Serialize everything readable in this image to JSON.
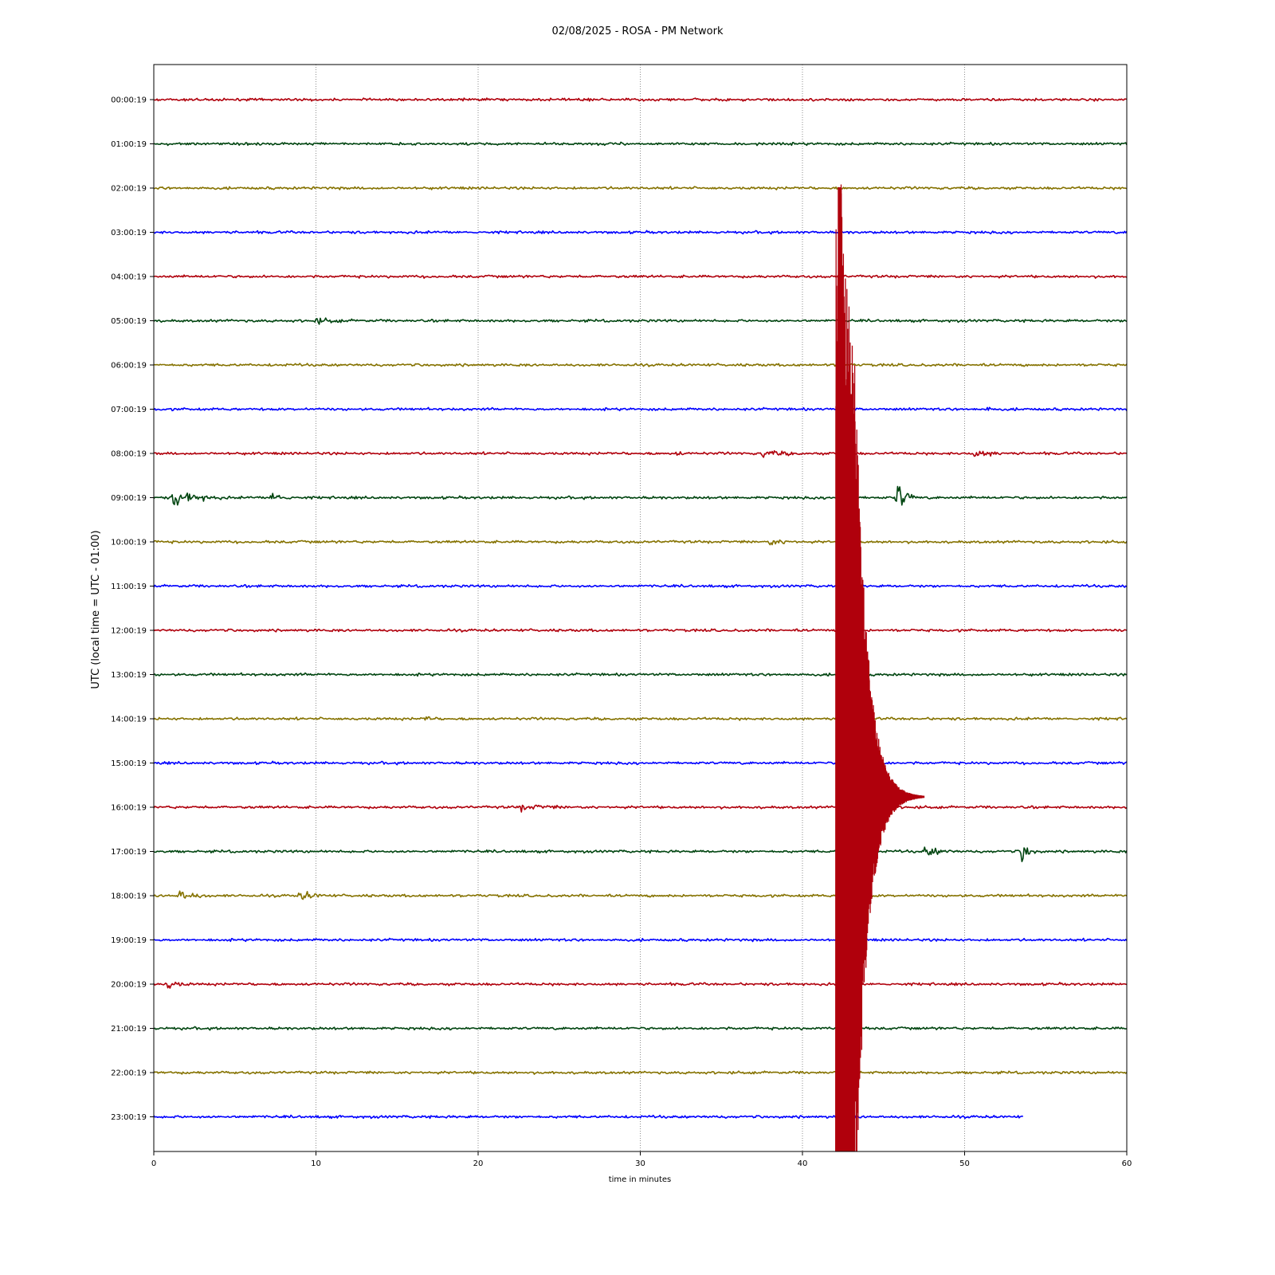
{
  "chart_data": {
    "type": "line",
    "title": "02/08/2025 - ROSA - PM Network",
    "xlabel": "time in minutes",
    "ylabel": "UTC (local time = UTC - 01:00)",
    "xlim": [
      0,
      60
    ],
    "xticks": [
      0,
      10,
      20,
      30,
      40,
      50,
      60
    ],
    "grid": "vertical dotted at x ticks",
    "color_cycle": [
      "#b0000c",
      "#004510",
      "#857200",
      "#0000ff"
    ],
    "series": [
      {
        "label": "00:00:19",
        "bursts": []
      },
      {
        "label": "01:00:19",
        "bursts": []
      },
      {
        "label": "02:00:19",
        "bursts": []
      },
      {
        "label": "03:00:19",
        "bursts": []
      },
      {
        "label": "04:00:19",
        "bursts": []
      },
      {
        "label": "05:00:19",
        "bursts": [
          {
            "t": 10,
            "amp": 0.08,
            "dur": 3
          }
        ]
      },
      {
        "label": "06:00:19",
        "bursts": []
      },
      {
        "label": "07:00:19",
        "bursts": [
          {
            "t": 51.4,
            "amp": 0.1,
            "dur": 0.6
          }
        ]
      },
      {
        "label": "08:00:19",
        "bursts": [
          {
            "t": 32.3,
            "amp": 0.15,
            "dur": 0.4
          },
          {
            "t": 37.5,
            "amp": 0.12,
            "dur": 3
          },
          {
            "t": 50.5,
            "amp": 0.12,
            "dur": 3
          }
        ]
      },
      {
        "label": "09:00:19",
        "bursts": [
          {
            "t": 1.2,
            "amp": 0.3,
            "dur": 3
          },
          {
            "t": 7.3,
            "amp": 0.22,
            "dur": 1.5
          },
          {
            "t": 45.8,
            "amp": 0.6,
            "dur": 1.2
          }
        ]
      },
      {
        "label": "10:00:19",
        "bursts": [
          {
            "t": 38,
            "amp": 0.12,
            "dur": 2
          }
        ]
      },
      {
        "label": "11:00:19",
        "bursts": []
      },
      {
        "label": "12:00:19",
        "bursts": []
      },
      {
        "label": "13:00:19",
        "bursts": []
      },
      {
        "label": "14:00:19",
        "bursts": [
          {
            "t": 16.8,
            "amp": 0.13,
            "dur": 0.8
          }
        ]
      },
      {
        "label": "15:00:19",
        "bursts": []
      },
      {
        "label": "16:00:19",
        "bursts": [
          {
            "t": 22.5,
            "amp": 0.1,
            "dur": 4
          }
        ]
      },
      {
        "label": "17:00:19",
        "bursts": [
          {
            "t": 47.5,
            "amp": 0.2,
            "dur": 2
          },
          {
            "t": 53.5,
            "amp": 0.4,
            "dur": 1
          }
        ]
      },
      {
        "label": "18:00:19",
        "bursts": [
          {
            "t": 1.5,
            "amp": 0.2,
            "dur": 2
          },
          {
            "t": 9,
            "amp": 0.17,
            "dur": 2
          }
        ]
      },
      {
        "label": "19:00:19",
        "bursts": []
      },
      {
        "label": "20:00:19",
        "bursts": [
          {
            "t": 0.8,
            "amp": 0.18,
            "dur": 1.5
          }
        ]
      },
      {
        "label": "21:00:19",
        "bursts": []
      },
      {
        "label": "22:00:19",
        "bursts": []
      },
      {
        "label": "23:00:19",
        "bursts": [],
        "end_minute": 53.6
      }
    ],
    "event": {
      "row_label": "16:00:19",
      "start_minute": 42.05,
      "peak_minute": 42.3,
      "secondary_peak_minute": 43.05,
      "coda_end_minute": 47.5,
      "color": "#b0000c"
    }
  }
}
